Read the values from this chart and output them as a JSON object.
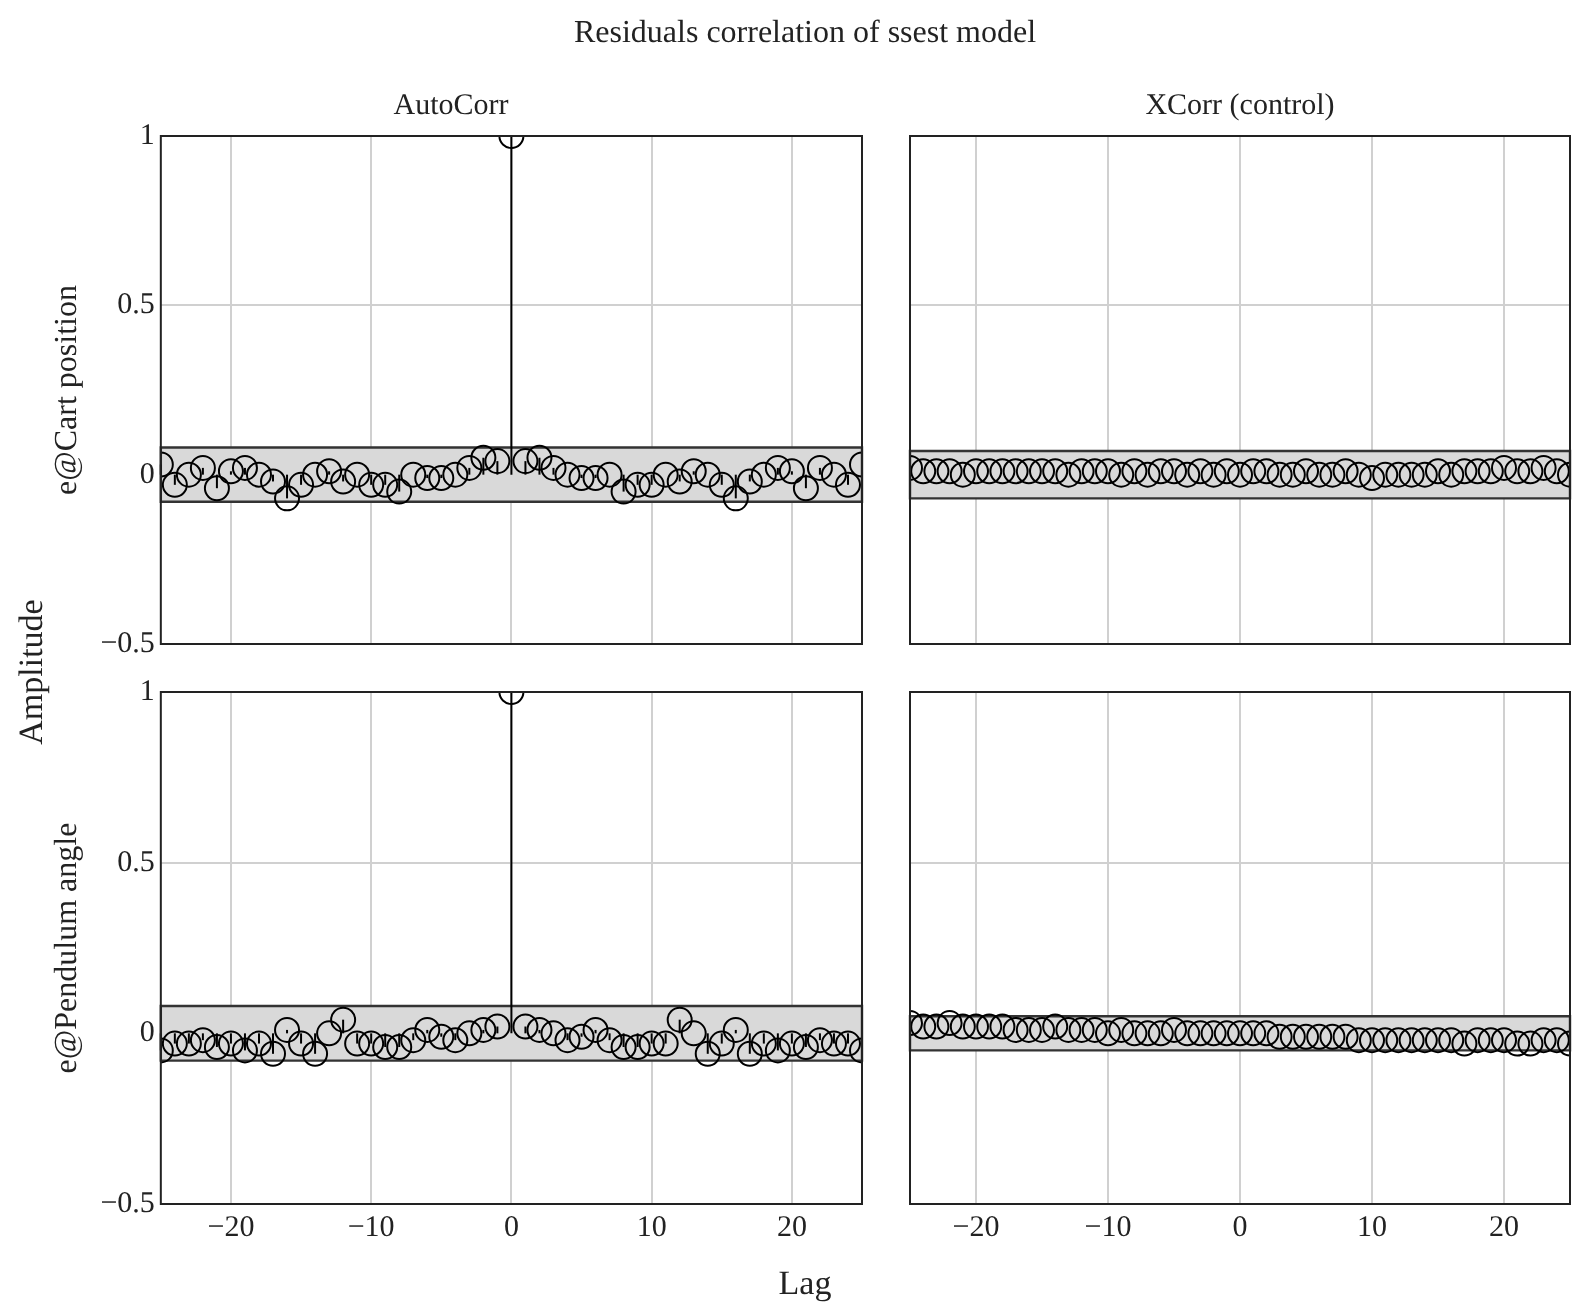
{
  "chart_data": [
    {
      "type": "lollipop",
      "title": "Residuals correlation of ssest model",
      "subtitle": "AutoCorr",
      "ylabel": "e@Cart position",
      "annotations": [
        "Amplitude"
      ],
      "x": [
        -25,
        -24,
        -23,
        -22,
        -21,
        -20,
        -19,
        -18,
        -17,
        -16,
        -15,
        -14,
        -13,
        -12,
        -11,
        -10,
        -9,
        -8,
        -7,
        -6,
        -5,
        -4,
        -3,
        -2,
        -1,
        0,
        1,
        2,
        3,
        4,
        5,
        6,
        7,
        8,
        9,
        10,
        11,
        12,
        13,
        14,
        15,
        16,
        17,
        18,
        19,
        20,
        21,
        22,
        23,
        24,
        25
      ],
      "series": [
        {
          "color": "#000000",
          "values": [
            0.03,
            -0.03,
            0.0,
            0.02,
            -0.04,
            0.01,
            0.02,
            0.0,
            -0.02,
            -0.07,
            -0.03,
            0.0,
            0.01,
            -0.02,
            0.0,
            -0.03,
            -0.03,
            -0.05,
            0.0,
            -0.01,
            -0.01,
            0.0,
            0.02,
            0.05,
            0.04,
            1,
            0.04,
            0.05,
            0.02,
            0.0,
            -0.01,
            -0.01,
            0.0,
            -0.05,
            -0.03,
            -0.03,
            0.0,
            -0.02,
            0.01,
            0.0,
            -0.03,
            -0.07,
            -0.02,
            0.0,
            0.02,
            0.01,
            -0.04,
            0.02,
            0.0,
            -0.03,
            0.03
          ]
        }
      ],
      "bands": [
        {
          "axis": "y",
          "from": -0.08,
          "to": 0.08,
          "color": "#d9d9d9"
        }
      ],
      "xlim": [
        -25,
        25
      ],
      "xticks": [
        -20,
        -10,
        0,
        10,
        20
      ],
      "ylim": [
        -0.5,
        1
      ],
      "yticks": [
        -0.5,
        0,
        0.5,
        1
      ],
      "grid": true,
      "legend": false,
      "marker": "circle",
      "tick_labels": "y"
    },
    {
      "type": "scatter",
      "subtitle": "XCorr (control)",
      "x": [
        -25,
        -24,
        -23,
        -22,
        -21,
        -20,
        -19,
        -18,
        -17,
        -16,
        -15,
        -14,
        -13,
        -12,
        -11,
        -10,
        -9,
        -8,
        -7,
        -6,
        -5,
        -4,
        -3,
        -2,
        -1,
        0,
        1,
        2,
        3,
        4,
        5,
        6,
        7,
        8,
        9,
        10,
        11,
        12,
        13,
        14,
        15,
        16,
        17,
        18,
        19,
        20,
        21,
        22,
        23,
        24,
        25
      ],
      "series": [
        {
          "color": "#000000",
          "values": [
            0.02,
            0.01,
            0.01,
            0.01,
            0.0,
            0.01,
            0.01,
            0.01,
            0.01,
            0.01,
            0.01,
            0.01,
            0.0,
            0.01,
            0.01,
            0.01,
            0.0,
            0.01,
            0.0,
            0.01,
            0.01,
            0.0,
            0.01,
            0.0,
            0.01,
            0.0,
            0.01,
            0.01,
            0.0,
            0.0,
            0.01,
            0.0,
            0.0,
            0.01,
            0.0,
            -0.01,
            0.0,
            0.0,
            0.0,
            0.0,
            0.01,
            0.0,
            0.01,
            0.01,
            0.01,
            0.02,
            0.01,
            0.01,
            0.02,
            0.01,
            0.0
          ]
        }
      ],
      "bands": [
        {
          "axis": "y",
          "from": -0.07,
          "to": 0.07,
          "color": "#d9d9d9"
        }
      ],
      "xlim": [
        -25,
        25
      ],
      "xticks": [
        -20,
        -10,
        0,
        10,
        20
      ],
      "ylim": [
        -0.5,
        1
      ],
      "yticks": [
        -0.5,
        0,
        0.5,
        1
      ],
      "grid": true,
      "legend": false,
      "marker": "circle",
      "tick_labels": false
    },
    {
      "type": "lollipop",
      "ylabel": "e@Pendulum angle",
      "xlabel": "Lag",
      "x": [
        -25,
        -24,
        -23,
        -22,
        -21,
        -20,
        -19,
        -18,
        -17,
        -16,
        -15,
        -14,
        -13,
        -12,
        -11,
        -10,
        -9,
        -8,
        -7,
        -6,
        -5,
        -4,
        -3,
        -2,
        -1,
        0,
        1,
        2,
        3,
        4,
        5,
        6,
        7,
        8,
        9,
        10,
        11,
        12,
        13,
        14,
        15,
        16,
        17,
        18,
        19,
        20,
        21,
        22,
        23,
        24,
        25
      ],
      "series": [
        {
          "color": "#000000",
          "values": [
            -0.05,
            -0.03,
            -0.03,
            -0.02,
            -0.04,
            -0.03,
            -0.05,
            -0.03,
            -0.06,
            0.01,
            -0.03,
            -0.06,
            0.0,
            0.04,
            -0.03,
            -0.03,
            -0.04,
            -0.04,
            -0.02,
            0.01,
            -0.01,
            -0.02,
            0.0,
            0.01,
            0.02,
            1,
            0.02,
            0.01,
            0.0,
            -0.02,
            -0.01,
            0.01,
            -0.02,
            -0.04,
            -0.04,
            -0.03,
            -0.03,
            0.04,
            0.0,
            -0.06,
            -0.03,
            0.01,
            -0.06,
            -0.03,
            -0.05,
            -0.03,
            -0.04,
            -0.02,
            -0.03,
            -0.03,
            -0.05
          ]
        }
      ],
      "bands": [
        {
          "axis": "y",
          "from": -0.08,
          "to": 0.08,
          "color": "#d9d9d9"
        }
      ],
      "xlim": [
        -25,
        25
      ],
      "xticks": [
        -20,
        -10,
        0,
        10,
        20
      ],
      "ylim": [
        -0.5,
        1
      ],
      "yticks": [
        -0.5,
        0,
        0.5,
        1
      ],
      "grid": true,
      "legend": false,
      "marker": "circle"
    },
    {
      "type": "scatter",
      "x": [
        -25,
        -24,
        -23,
        -22,
        -21,
        -20,
        -19,
        -18,
        -17,
        -16,
        -15,
        -14,
        -13,
        -12,
        -11,
        -10,
        -9,
        -8,
        -7,
        -6,
        -5,
        -4,
        -3,
        -2,
        -1,
        0,
        1,
        2,
        3,
        4,
        5,
        6,
        7,
        8,
        9,
        10,
        11,
        12,
        13,
        14,
        15,
        16,
        17,
        18,
        19,
        20,
        21,
        22,
        23,
        24,
        25
      ],
      "series": [
        {
          "color": "#000000",
          "values": [
            0.03,
            0.02,
            0.02,
            0.03,
            0.02,
            0.02,
            0.02,
            0.02,
            0.01,
            0.01,
            0.01,
            0.02,
            0.01,
            0.01,
            0.01,
            0.0,
            0.01,
            0.0,
            0.0,
            0.0,
            0.01,
            0.0,
            0.0,
            0.0,
            0.0,
            0.0,
            0.0,
            0.0,
            -0.01,
            -0.01,
            -0.01,
            -0.01,
            -0.01,
            -0.01,
            -0.02,
            -0.02,
            -0.02,
            -0.02,
            -0.02,
            -0.02,
            -0.02,
            -0.02,
            -0.03,
            -0.02,
            -0.02,
            -0.02,
            -0.03,
            -0.03,
            -0.02,
            -0.02,
            -0.03
          ]
        }
      ],
      "bands": [
        {
          "axis": "y",
          "from": -0.05,
          "to": 0.05,
          "color": "#d9d9d9"
        }
      ],
      "xlim": [
        -25,
        25
      ],
      "xticks": [
        -20,
        -10,
        0,
        10,
        20
      ],
      "ylim": [
        -0.5,
        1
      ],
      "yticks": [
        -0.5,
        0,
        0.5,
        1
      ],
      "grid": true,
      "legend": false,
      "marker": "circle",
      "tick_labels": "x"
    }
  ]
}
